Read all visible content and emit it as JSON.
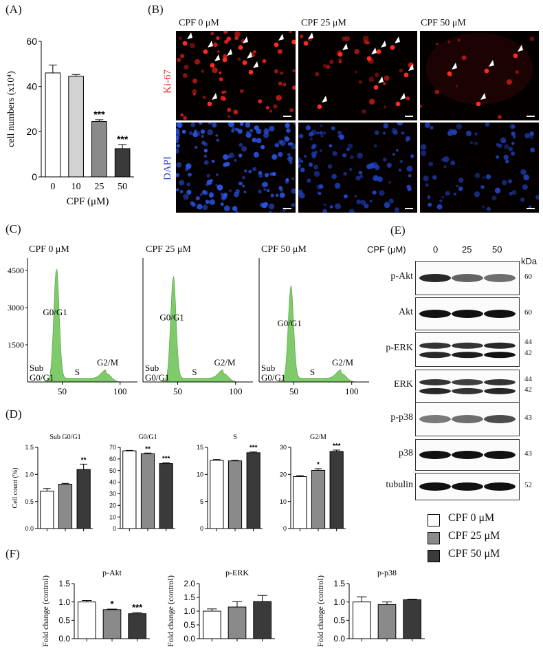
{
  "panel_labels": [
    "(A)",
    "(B)",
    "(C)",
    "(D)",
    "(E)",
    "(F)"
  ],
  "panelA": {
    "chart_data": {
      "type": "bar",
      "categories": [
        "0",
        "10",
        "25",
        "50"
      ],
      "values": [
        46,
        44.5,
        24.5,
        12.5
      ],
      "errors": [
        3.5,
        0.8,
        0.8,
        1.8
      ],
      "significance": [
        "",
        "",
        "***",
        "***"
      ],
      "ylabel": "cell numbers (x10⁴)",
      "xlabel": "CPF (μM)",
      "yticks": [
        "0",
        "20",
        "40",
        "60"
      ],
      "ylim": [
        0,
        60
      ],
      "colors": [
        "#ffffff",
        "#d2d2d2",
        "#8a8a8a",
        "#3a3a3a"
      ]
    }
  },
  "panelB": {
    "titles": [
      "CPF 0 μM",
      "CPF 25 μM",
      "CPF 50 μM"
    ],
    "row_labels": [
      "Ki-67",
      "DAPI"
    ],
    "ki67_color": "#e0201a",
    "dapi_color": "#2a3fd0"
  },
  "panelC": {
    "chart_data": {
      "type": "area",
      "titles": [
        "CPF 0 μM",
        "CPF 25 μM",
        "CPF 50 μM"
      ],
      "yticks": [
        "1500",
        "3000",
        "4500"
      ],
      "xticks": [
        "50",
        "100"
      ],
      "ylim": [
        0,
        5000
      ],
      "peak_heights": [
        4500,
        4150,
        3750
      ],
      "phase_labels": {
        "g0g1": "G0/G1",
        "s": "S",
        "g2m": "G2/M",
        "sub1": "Sub",
        "sub2": "G0/G1"
      },
      "color": "#7fcb6b"
    }
  },
  "panelD": {
    "chart_data": [
      {
        "type": "bar",
        "title": "Sub G0/G1",
        "ylabel": "Cell count (%)",
        "ylim": [
          0,
          1.5
        ],
        "yticks": [
          "0.0",
          "0.5",
          "1.0",
          "1.5"
        ],
        "values": [
          0.69,
          0.82,
          1.09
        ],
        "errors": [
          0.05,
          0.015,
          0.1
        ],
        "significance": [
          "",
          "",
          "**"
        ]
      },
      {
        "type": "bar",
        "title": "G0/G1",
        "ylabel": "",
        "ylim": [
          0,
          70
        ],
        "yticks": [
          "0",
          "10",
          "20",
          "30",
          "40",
          "50",
          "60",
          "70"
        ],
        "values": [
          67,
          64.5,
          56
        ],
        "errors": [
          0.4,
          0.6,
          0.6
        ],
        "significance": [
          "",
          "**",
          "***"
        ]
      },
      {
        "type": "bar",
        "title": "S",
        "ylabel": "",
        "ylim": [
          0,
          15
        ],
        "yticks": [
          "0",
          "5",
          "10",
          "15"
        ],
        "values": [
          12.6,
          12.5,
          14
        ],
        "errors": [
          0.15,
          0.1,
          0.15
        ],
        "significance": [
          "",
          "",
          "***"
        ]
      },
      {
        "type": "bar",
        "title": "G2/M",
        "ylabel": "",
        "ylim": [
          0,
          30
        ],
        "yticks": [
          "0",
          "10",
          "20",
          "30"
        ],
        "values": [
          19.2,
          21.5,
          28.5
        ],
        "errors": [
          0.4,
          0.6,
          0.5
        ],
        "significance": [
          "",
          "*",
          "***"
        ]
      }
    ],
    "colors": [
      "#ffffff",
      "#8a8a8a",
      "#3a3a3a"
    ]
  },
  "panelE": {
    "header": "CPF (μM)",
    "lanes": [
      "0",
      "25",
      "50"
    ],
    "kda_header": "kDa",
    "blots": [
      {
        "label": "p-Akt",
        "kda": [
          "60"
        ]
      },
      {
        "label": "Akt",
        "kda": [
          "60"
        ]
      },
      {
        "label": "p-ERK",
        "kda": [
          "44",
          "42"
        ]
      },
      {
        "label": "ERK",
        "kda": [
          "44",
          "42"
        ]
      },
      {
        "label": "p-p38",
        "kda": [
          "43"
        ]
      },
      {
        "label": "p38",
        "kda": [
          "43"
        ]
      },
      {
        "label": "tubulin",
        "kda": [
          "52"
        ]
      }
    ]
  },
  "legend": [
    {
      "label": "CPF 0 μM",
      "color": "#ffffff"
    },
    {
      "label": "CPF 25 μM",
      "color": "#8a8a8a"
    },
    {
      "label": "CPF 50 μM",
      "color": "#3a3a3a"
    }
  ],
  "panelF": {
    "chart_data": [
      {
        "type": "bar",
        "title": "p-Akt",
        "ylabel": "Fold change (control)",
        "ylim": [
          0,
          1.5
        ],
        "yticks": [
          "0.0",
          "0.5",
          "1.0",
          "1.5"
        ],
        "values": [
          1.0,
          0.79,
          0.68
        ],
        "errors": [
          0.04,
          0.015,
          0.03
        ],
        "significance": [
          "",
          "*",
          "***"
        ]
      },
      {
        "type": "bar",
        "title": "p-ERK",
        "ylabel": "Fold change (control)",
        "ylim": [
          0,
          2.0
        ],
        "yticks": [
          "0.0",
          "0.5",
          "1.0",
          "1.5",
          "2.0"
        ],
        "values": [
          1.0,
          1.15,
          1.35
        ],
        "errors": [
          0.08,
          0.2,
          0.22
        ],
        "significance": [
          "",
          "",
          ""
        ]
      },
      {
        "type": "bar",
        "title": "p-p38",
        "ylabel": "Fold change (control)",
        "ylim": [
          0,
          1.5
        ],
        "yticks": [
          "0.0",
          "0.5",
          "1.0",
          "1.5"
        ],
        "values": [
          1.0,
          0.93,
          1.06
        ],
        "errors": [
          0.14,
          0.07,
          0.015
        ],
        "significance": [
          "",
          "",
          ""
        ]
      }
    ],
    "colors": [
      "#ffffff",
      "#8a8a8a",
      "#3a3a3a"
    ]
  }
}
